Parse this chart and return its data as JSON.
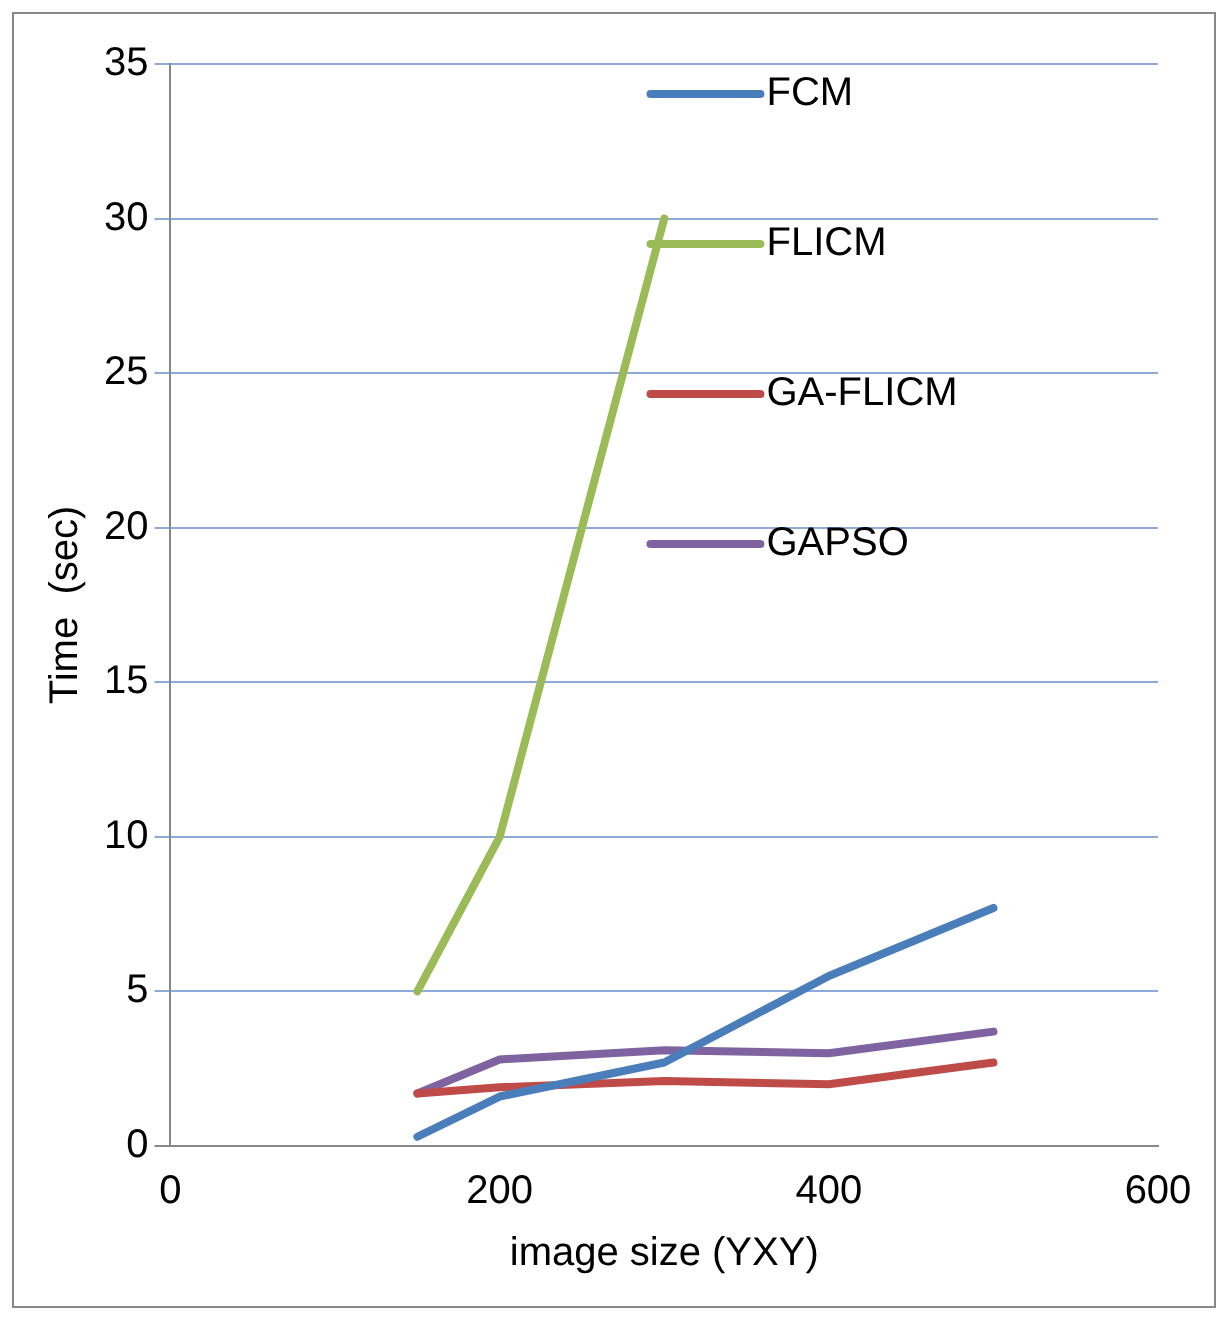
{
  "chart_data": {
    "type": "line",
    "xlabel": "image size (YXY)",
    "ylabel": "Time  (sec)",
    "xlim": [
      0,
      600
    ],
    "xticks": [
      0,
      200,
      400,
      600
    ],
    "ylim": [
      0,
      35
    ],
    "yticks": [
      0,
      5,
      10,
      15,
      20,
      25,
      30,
      35
    ],
    "grid": "y",
    "legend": "top right",
    "marker": "none",
    "line_style": "solid",
    "series": [
      {
        "name": "FCM",
        "color": "#4a7ebb",
        "x": [
          150,
          200,
          300,
          400,
          500
        ],
        "values": [
          0.3,
          1.6,
          2.7,
          5.5,
          7.7
        ]
      },
      {
        "name": "FLICM",
        "color": "#9bbb59",
        "x": [
          150,
          200,
          300
        ],
        "values": [
          5,
          10,
          30
        ]
      },
      {
        "name": "GA-FLICM",
        "color": "#be4b48",
        "x": [
          150,
          200,
          300,
          400,
          500
        ],
        "values": [
          1.7,
          1.9,
          2.1,
          2.0,
          2.7
        ]
      },
      {
        "name": "GAPSO",
        "color": "#7f62a0",
        "x": [
          150,
          200,
          300,
          400,
          500
        ],
        "values": [
          1.7,
          2.8,
          3.1,
          3.0,
          3.7
        ]
      }
    ]
  }
}
